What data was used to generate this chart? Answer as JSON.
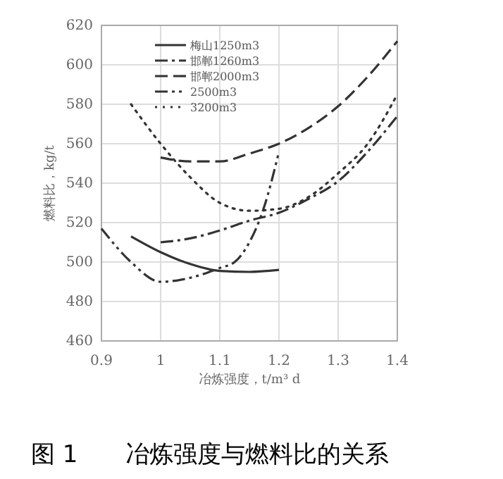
{
  "chart_data": {
    "type": "line",
    "title": "图 1　　冶炼强度与燃料比的关系",
    "xlabel": "冶炼强度，t/m³ d",
    "ylabel": "燃料比，kg/t",
    "xlim": [
      0.9,
      1.4
    ],
    "xticks": [
      0.9,
      1,
      1.1,
      1.2,
      1.3,
      1.4
    ],
    "ylim": [
      460,
      620
    ],
    "yticks": [
      460,
      480,
      500,
      520,
      540,
      560,
      580,
      600,
      620
    ],
    "grid": true,
    "legend": "top left",
    "marker": "none",
    "series": [
      {
        "name": "梅山1250m3",
        "color": "#333333",
        "line_style": "solid",
        "x": [
          0.95,
          1,
          1.05,
          1.1,
          1.15,
          1.2
        ],
        "values": [
          513,
          505,
          499,
          495.5,
          495,
          496
        ]
      },
      {
        "name": "邯郸1260m3",
        "color": "#333333",
        "line_style": "dashdot",
        "x": [
          1,
          1.05,
          1.1,
          1.15,
          1.2,
          1.25,
          1.3,
          1.35,
          1.4
        ],
        "values": [
          510,
          512,
          516,
          521,
          525,
          532,
          541,
          556,
          574
        ]
      },
      {
        "name": "邯郸2000m3",
        "color": "#333333",
        "line_style": "dashed",
        "x": [
          1,
          1.05,
          1.1,
          1.15,
          1.2,
          1.25,
          1.3,
          1.35,
          1.4
        ],
        "values": [
          553,
          551,
          551,
          555,
          560,
          568,
          579,
          594,
          612
        ]
      },
      {
        "name": "2500m3",
        "color": "#333333",
        "line_style": "dashdotdot",
        "x": [
          0.9,
          0.95,
          1,
          1.05,
          1.1,
          1.125,
          1.15,
          1.175,
          1.2
        ],
        "values": [
          517,
          500,
          490,
          492,
          497,
          500,
          510,
          528,
          556
        ]
      },
      {
        "name": "3200m3",
        "color": "#333333",
        "line_style": "dotted",
        "x": [
          0.95,
          1,
          1.05,
          1.1,
          1.15,
          1.2,
          1.25,
          1.3,
          1.35,
          1.4
        ],
        "values": [
          580,
          560,
          543,
          530,
          526,
          527,
          533,
          545,
          560,
          585
        ]
      }
    ]
  }
}
